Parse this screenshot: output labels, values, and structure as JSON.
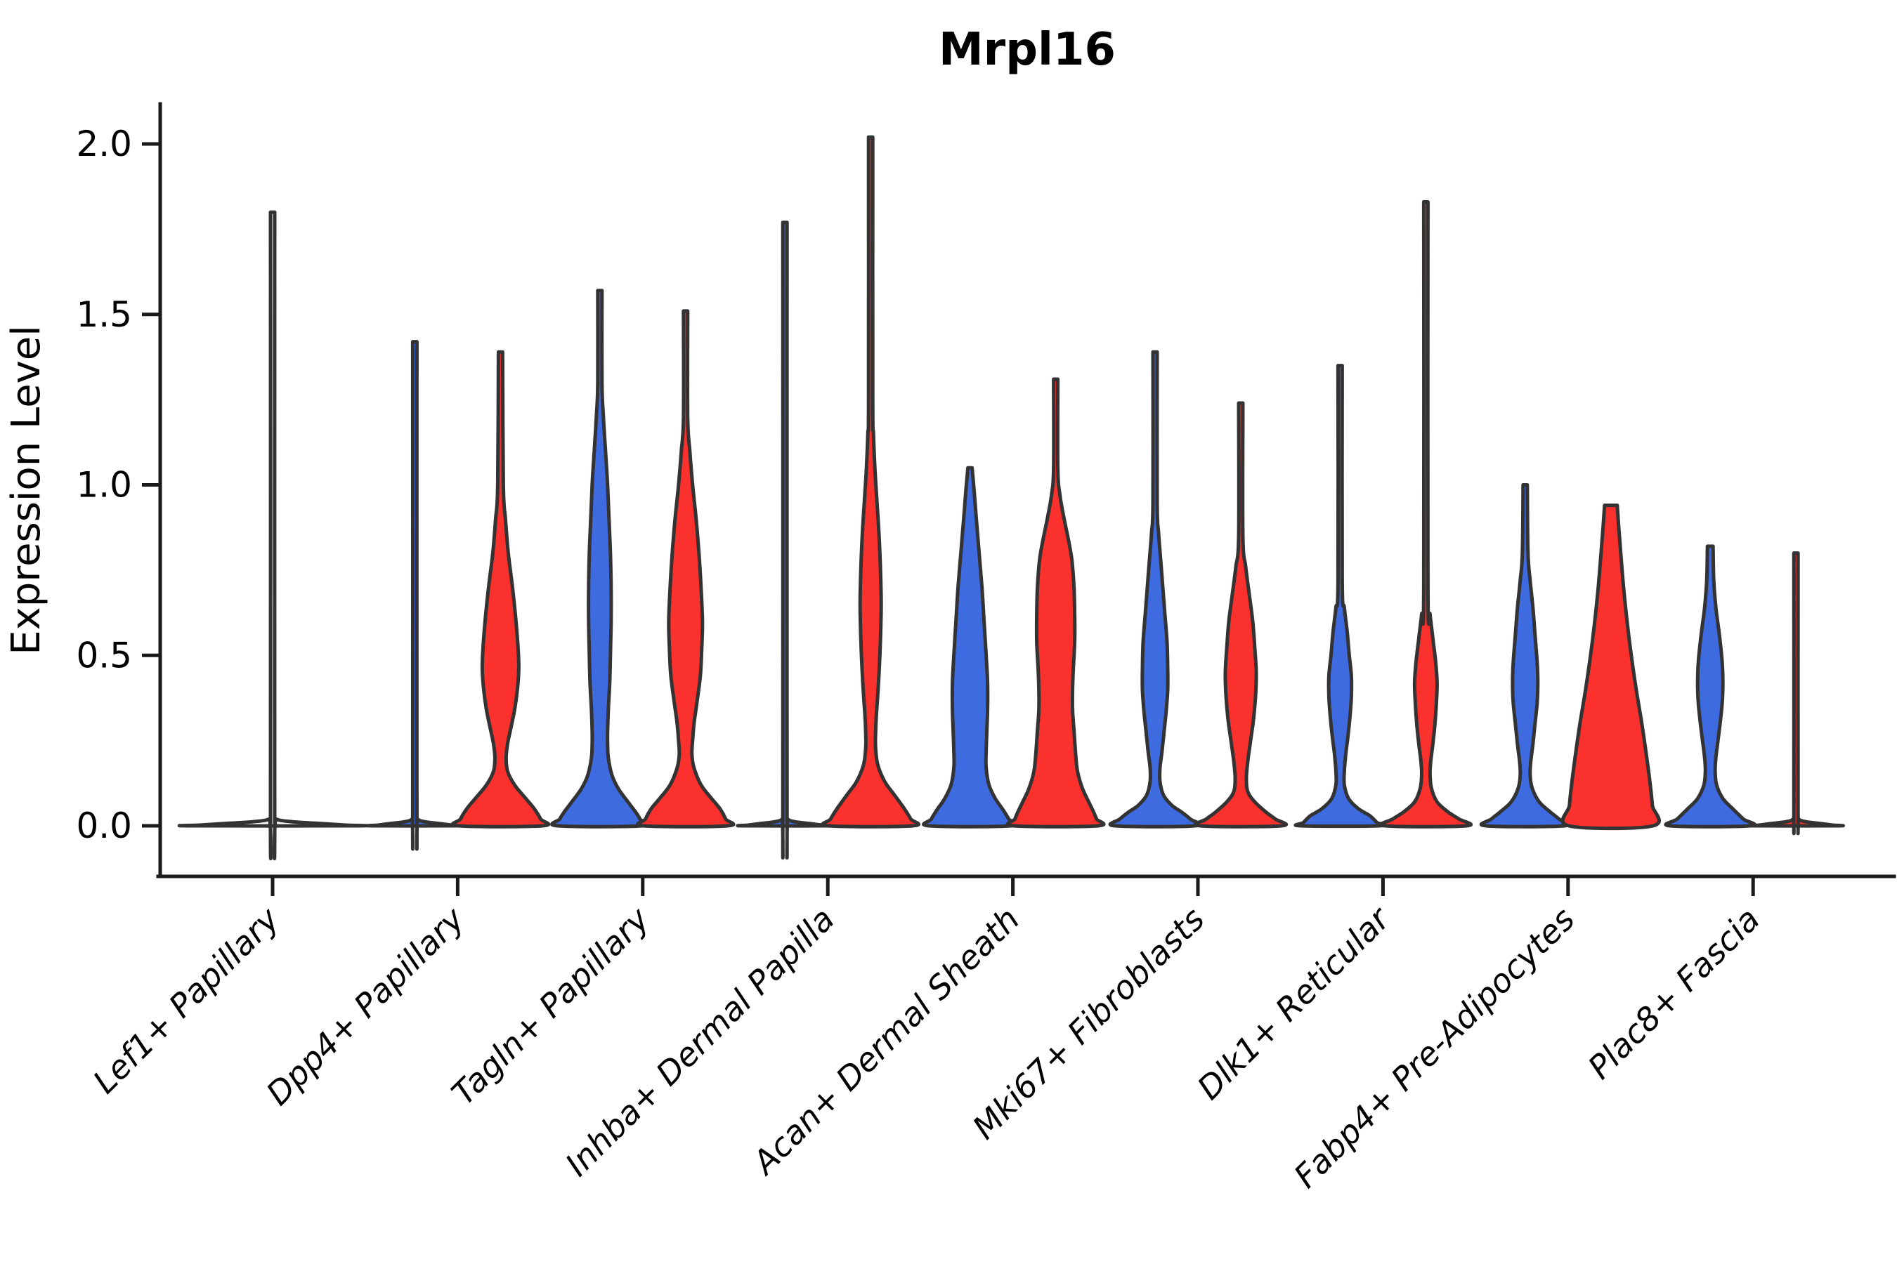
{
  "chart_data": {
    "type": "violin",
    "title": "Mrpl16",
    "ylabel": "Expression Level",
    "xlabel": "",
    "grid": false,
    "legend": "none",
    "ylim": [
      -0.09,
      2.12
    ],
    "yticks": [
      {
        "value": 0.0,
        "label": "0.0"
      },
      {
        "value": 0.5,
        "label": "0.5"
      },
      {
        "value": 1.0,
        "label": "1.0"
      },
      {
        "value": 1.5,
        "label": "1.5"
      },
      {
        "value": 2.0,
        "label": "2.0"
      }
    ],
    "categories": [
      "Lef1+ Papillary",
      "Dpp4+ Papillary",
      "Tagln+ Papillary",
      "Inhba+ Dermal Papilla",
      "Acan+ Dermal Sheath",
      "Mki67+ Fibroblasts",
      "Dlk1+ Reticular",
      "Fabp4+ Pre-Adipocytes",
      "Plac8+ Fascia"
    ],
    "colors": {
      "blue": "#3F6BE0",
      "red": "#FA312D",
      "none": "#FFFFFF",
      "outline": "#333333"
    },
    "violins": [
      {
        "category": "Lef1+ Papillary",
        "category_index": 0,
        "side": "full",
        "color": "none",
        "max": 1.8,
        "profile": [
          [
            1.8,
            3
          ],
          [
            0.04,
            3
          ],
          [
            0.02,
            5
          ],
          [
            0.012,
            28
          ],
          [
            0.006,
            75
          ],
          [
            0.002,
            104
          ],
          [
            0,
            118
          ]
        ]
      },
      {
        "category": "Dpp4+ Papillary",
        "category_index": 1,
        "side": "left",
        "color": "blue",
        "max": 1.42,
        "profile": [
          [
            1.42,
            3
          ],
          [
            0.04,
            3
          ],
          [
            0.02,
            4
          ],
          [
            0.012,
            14
          ],
          [
            0.006,
            38
          ],
          [
            0.002,
            52
          ],
          [
            0,
            60
          ]
        ]
      },
      {
        "category": "Dpp4+ Papillary",
        "category_index": 1,
        "side": "right",
        "color": "red",
        "max": 1.39,
        "profile": [
          [
            1.39,
            3
          ],
          [
            1.0,
            4
          ],
          [
            0.9,
            7
          ],
          [
            0.8,
            11
          ],
          [
            0.7,
            17
          ],
          [
            0.6,
            22
          ],
          [
            0.52,
            25
          ],
          [
            0.46,
            26
          ],
          [
            0.4,
            24
          ],
          [
            0.34,
            20
          ],
          [
            0.28,
            14
          ],
          [
            0.24,
            10
          ],
          [
            0.2,
            8
          ],
          [
            0.16,
            10
          ],
          [
            0.12,
            20
          ],
          [
            0.08,
            36
          ],
          [
            0.05,
            48
          ],
          [
            0.02,
            57
          ],
          [
            0,
            60
          ]
        ]
      },
      {
        "category": "Tagln+ Papillary",
        "category_index": 2,
        "side": "left",
        "color": "blue",
        "max": 1.57,
        "profile": [
          [
            1.57,
            3
          ],
          [
            1.3,
            3
          ],
          [
            1.2,
            5
          ],
          [
            1.1,
            8
          ],
          [
            1.0,
            11
          ],
          [
            0.9,
            13
          ],
          [
            0.8,
            15
          ],
          [
            0.7,
            16
          ],
          [
            0.6,
            16
          ],
          [
            0.5,
            15
          ],
          [
            0.42,
            14
          ],
          [
            0.34,
            12
          ],
          [
            0.28,
            11
          ],
          [
            0.24,
            11
          ],
          [
            0.2,
            12
          ],
          [
            0.15,
            17
          ],
          [
            0.11,
            26
          ],
          [
            0.07,
            40
          ],
          [
            0.04,
            51
          ],
          [
            0.02,
            57
          ],
          [
            0,
            60
          ]
        ]
      },
      {
        "category": "Tagln+ Papillary",
        "category_index": 2,
        "side": "right",
        "color": "red",
        "max": 1.51,
        "profile": [
          [
            1.51,
            3
          ],
          [
            1.2,
            3
          ],
          [
            1.1,
            6
          ],
          [
            1.0,
            10
          ],
          [
            0.9,
            15
          ],
          [
            0.8,
            19
          ],
          [
            0.7,
            22
          ],
          [
            0.6,
            24
          ],
          [
            0.52,
            23
          ],
          [
            0.44,
            21
          ],
          [
            0.36,
            16
          ],
          [
            0.3,
            12
          ],
          [
            0.25,
            10
          ],
          [
            0.21,
            9
          ],
          [
            0.17,
            12
          ],
          [
            0.12,
            22
          ],
          [
            0.08,
            37
          ],
          [
            0.05,
            49
          ],
          [
            0.02,
            57
          ],
          [
            0,
            60
          ]
        ]
      },
      {
        "category": "Inhba+ Dermal Papilla",
        "category_index": 3,
        "side": "left",
        "color": "blue",
        "max": 1.77,
        "profile": [
          [
            1.77,
            3
          ],
          [
            0.04,
            3
          ],
          [
            0.02,
            4
          ],
          [
            0.012,
            14
          ],
          [
            0.006,
            38
          ],
          [
            0.002,
            52
          ],
          [
            0,
            60
          ]
        ]
      },
      {
        "category": "Inhba+ Dermal Papilla",
        "category_index": 3,
        "side": "right",
        "color": "red",
        "max": 2.02,
        "profile": [
          [
            2.02,
            3
          ],
          [
            1.25,
            3
          ],
          [
            1.15,
            4
          ],
          [
            1.05,
            6
          ],
          [
            0.95,
            9
          ],
          [
            0.85,
            12
          ],
          [
            0.75,
            14
          ],
          [
            0.65,
            15
          ],
          [
            0.55,
            14
          ],
          [
            0.45,
            12
          ],
          [
            0.38,
            10
          ],
          [
            0.32,
            8
          ],
          [
            0.27,
            7
          ],
          [
            0.23,
            7
          ],
          [
            0.18,
            10
          ],
          [
            0.13,
            20
          ],
          [
            0.09,
            34
          ],
          [
            0.05,
            48
          ],
          [
            0.02,
            57
          ],
          [
            0,
            60
          ]
        ]
      },
      {
        "category": "Acan+ Dermal Sheath",
        "category_index": 4,
        "side": "left",
        "color": "blue",
        "max": 1.05,
        "profile": [
          [
            1.05,
            3
          ],
          [
            0.98,
            6
          ],
          [
            0.9,
            9
          ],
          [
            0.8,
            13
          ],
          [
            0.7,
            17
          ],
          [
            0.6,
            20
          ],
          [
            0.5,
            23
          ],
          [
            0.42,
            25
          ],
          [
            0.34,
            25
          ],
          [
            0.28,
            24
          ],
          [
            0.22,
            23
          ],
          [
            0.17,
            23
          ],
          [
            0.12,
            27
          ],
          [
            0.08,
            36
          ],
          [
            0.05,
            46
          ],
          [
            0.02,
            55
          ],
          [
            0,
            58
          ]
        ]
      },
      {
        "category": "Acan+ Dermal Sheath",
        "category_index": 4,
        "side": "right",
        "color": "red",
        "max": 1.31,
        "profile": [
          [
            1.31,
            3
          ],
          [
            1.05,
            3
          ],
          [
            0.97,
            6
          ],
          [
            0.9,
            12
          ],
          [
            0.84,
            18
          ],
          [
            0.78,
            23
          ],
          [
            0.7,
            26
          ],
          [
            0.62,
            27
          ],
          [
            0.54,
            27
          ],
          [
            0.46,
            25
          ],
          [
            0.4,
            24
          ],
          [
            0.34,
            24
          ],
          [
            0.28,
            26
          ],
          [
            0.22,
            28
          ],
          [
            0.16,
            31
          ],
          [
            0.11,
            38
          ],
          [
            0.07,
            47
          ],
          [
            0.04,
            54
          ],
          [
            0.02,
            58
          ],
          [
            0,
            60
          ]
        ]
      },
      {
        "category": "Mki67+ Fibroblasts",
        "category_index": 5,
        "side": "left",
        "color": "blue",
        "max": 1.39,
        "profile": [
          [
            1.39,
            3
          ],
          [
            0.95,
            3
          ],
          [
            0.86,
            5
          ],
          [
            0.78,
            8
          ],
          [
            0.7,
            11
          ],
          [
            0.62,
            14
          ],
          [
            0.54,
            17
          ],
          [
            0.46,
            18
          ],
          [
            0.4,
            18
          ],
          [
            0.34,
            16
          ],
          [
            0.28,
            13
          ],
          [
            0.22,
            10
          ],
          [
            0.17,
            7
          ],
          [
            0.13,
            7
          ],
          [
            0.09,
            12
          ],
          [
            0.06,
            24
          ],
          [
            0.04,
            38
          ],
          [
            0.02,
            50
          ],
          [
            0,
            57
          ]
        ]
      },
      {
        "category": "Mki67+ Fibroblasts",
        "category_index": 5,
        "side": "right",
        "color": "red",
        "max": 1.24,
        "profile": [
          [
            1.24,
            3
          ],
          [
            0.85,
            3
          ],
          [
            0.76,
            7
          ],
          [
            0.68,
            12
          ],
          [
            0.6,
            17
          ],
          [
            0.52,
            20
          ],
          [
            0.45,
            22
          ],
          [
            0.38,
            21
          ],
          [
            0.31,
            18
          ],
          [
            0.25,
            14
          ],
          [
            0.19,
            10
          ],
          [
            0.14,
            8
          ],
          [
            0.1,
            10
          ],
          [
            0.07,
            20
          ],
          [
            0.04,
            36
          ],
          [
            0.02,
            49
          ],
          [
            0,
            58
          ]
        ]
      },
      {
        "category": "Dlk1+ Reticular",
        "category_index": 6,
        "side": "left",
        "color": "blue",
        "max": 1.35,
        "profile": [
          [
            1.35,
            3
          ],
          [
            0.72,
            3
          ],
          [
            0.64,
            6
          ],
          [
            0.57,
            10
          ],
          [
            0.5,
            13
          ],
          [
            0.44,
            16
          ],
          [
            0.38,
            16
          ],
          [
            0.32,
            14
          ],
          [
            0.26,
            11
          ],
          [
            0.21,
            8
          ],
          [
            0.16,
            6
          ],
          [
            0.12,
            6
          ],
          [
            0.08,
            12
          ],
          [
            0.05,
            26
          ],
          [
            0.03,
            42
          ],
          [
            0.01,
            52
          ],
          [
            0,
            56
          ]
        ]
      },
      {
        "category": "Dlk1+ Reticular",
        "category_index": 6,
        "side": "right",
        "color": "red",
        "max": 1.83,
        "profile": [
          [
            1.83,
            3
          ],
          [
            0.7,
            3
          ],
          [
            0.62,
            6
          ],
          [
            0.55,
            10
          ],
          [
            0.48,
            14
          ],
          [
            0.42,
            16
          ],
          [
            0.36,
            15
          ],
          [
            0.3,
            13
          ],
          [
            0.24,
            10
          ],
          [
            0.19,
            7
          ],
          [
            0.15,
            6
          ],
          [
            0.11,
            8
          ],
          [
            0.07,
            16
          ],
          [
            0.04,
            32
          ],
          [
            0.02,
            47
          ],
          [
            0,
            58
          ]
        ]
      },
      {
        "category": "Fabp4+ Pre-Adipocytes",
        "category_index": 7,
        "side": "left",
        "color": "blue",
        "max": 1.0,
        "profile": [
          [
            1.0,
            3
          ],
          [
            0.8,
            4
          ],
          [
            0.72,
            7
          ],
          [
            0.64,
            11
          ],
          [
            0.56,
            14
          ],
          [
            0.48,
            17
          ],
          [
            0.42,
            18
          ],
          [
            0.36,
            17
          ],
          [
            0.3,
            14
          ],
          [
            0.24,
            11
          ],
          [
            0.19,
            8
          ],
          [
            0.15,
            7
          ],
          [
            0.11,
            10
          ],
          [
            0.07,
            20
          ],
          [
            0.04,
            36
          ],
          [
            0.02,
            48
          ],
          [
            0,
            56
          ]
        ]
      },
      {
        "category": "Fabp4+ Pre-Adipocytes",
        "category_index": 7,
        "side": "right",
        "color": "red",
        "max": 0.94,
        "profile": [
          [
            0.94,
            9
          ],
          [
            0.88,
            11
          ],
          [
            0.8,
            14
          ],
          [
            0.7,
            18
          ],
          [
            0.6,
            23
          ],
          [
            0.5,
            29
          ],
          [
            0.4,
            36
          ],
          [
            0.3,
            44
          ],
          [
            0.2,
            51
          ],
          [
            0.12,
            56
          ],
          [
            0.06,
            59
          ],
          [
            0,
            60
          ]
        ]
      },
      {
        "category": "Plac8+ Fascia",
        "category_index": 8,
        "side": "left",
        "color": "blue",
        "max": 0.82,
        "profile": [
          [
            0.82,
            4
          ],
          [
            0.72,
            5
          ],
          [
            0.64,
            8
          ],
          [
            0.56,
            13
          ],
          [
            0.48,
            17
          ],
          [
            0.42,
            18
          ],
          [
            0.36,
            17
          ],
          [
            0.3,
            14
          ],
          [
            0.25,
            11
          ],
          [
            0.2,
            8
          ],
          [
            0.16,
            7
          ],
          [
            0.12,
            9
          ],
          [
            0.08,
            18
          ],
          [
            0.05,
            32
          ],
          [
            0.02,
            47
          ],
          [
            0,
            57
          ]
        ]
      },
      {
        "category": "Plac8+ Fascia",
        "category_index": 8,
        "side": "right",
        "color": "red",
        "max": 0.8,
        "profile": [
          [
            0.8,
            3
          ],
          [
            0.04,
            3
          ],
          [
            0.02,
            4
          ],
          [
            0.012,
            14
          ],
          [
            0.006,
            38
          ],
          [
            0.002,
            52
          ],
          [
            0,
            60
          ]
        ]
      }
    ]
  }
}
